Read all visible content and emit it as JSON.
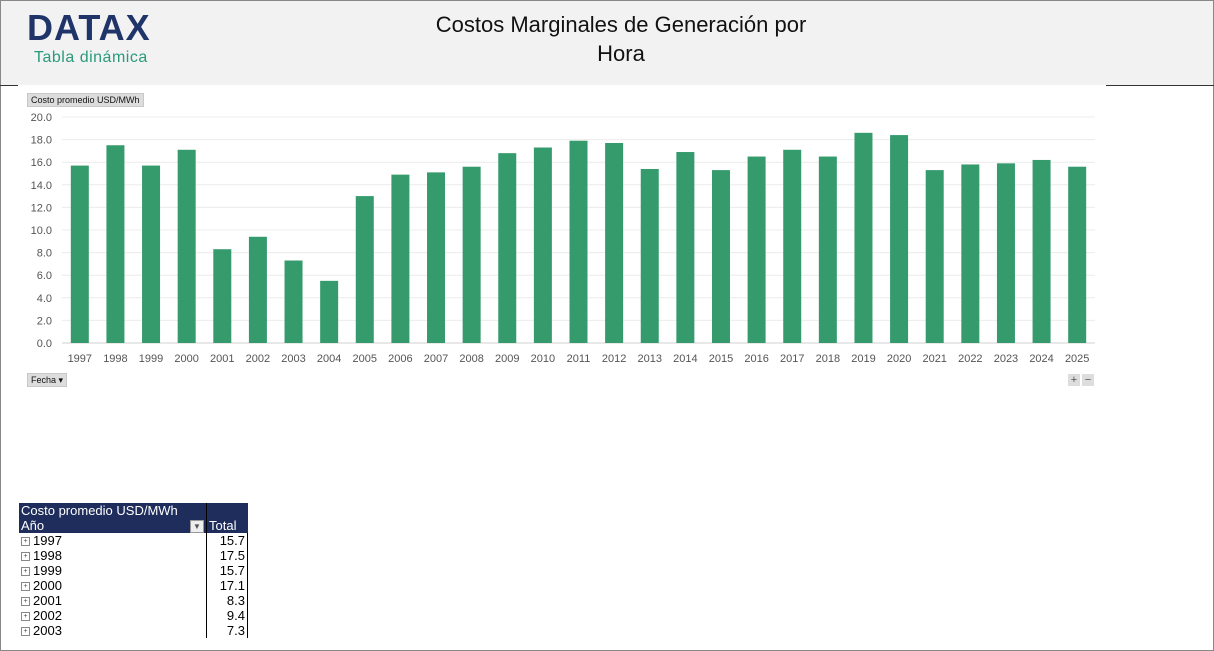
{
  "header": {
    "logo": "DATAX",
    "subtitle": "Tabla dinámica",
    "title_line1": "Costos Marginales de Generación por",
    "title_line2": "Hora"
  },
  "chart_controls": {
    "value_field": "Costo promedio USD/MWh",
    "axis_field": "Fecha ▾",
    "zoom_in": "+",
    "zoom_out": "−"
  },
  "chart_data": {
    "type": "bar",
    "categories": [
      "1997",
      "1998",
      "1999",
      "2000",
      "2001",
      "2002",
      "2003",
      "2004",
      "2005",
      "2006",
      "2007",
      "2008",
      "2009",
      "2010",
      "2011",
      "2012",
      "2013",
      "2014",
      "2015",
      "2016",
      "2017",
      "2018",
      "2019",
      "2020",
      "2021",
      "2022",
      "2023",
      "2024",
      "2025"
    ],
    "values": [
      15.7,
      17.5,
      15.7,
      17.1,
      8.3,
      9.4,
      7.3,
      5.5,
      13.0,
      14.9,
      15.1,
      15.6,
      16.8,
      17.3,
      17.9,
      17.7,
      15.4,
      16.9,
      15.3,
      16.5,
      17.1,
      16.5,
      18.6,
      18.4,
      15.3,
      15.8,
      15.9,
      16.2,
      15.6
    ],
    "ylim": [
      0,
      20
    ],
    "yticks": [
      "0.0",
      "2.0",
      "4.0",
      "6.0",
      "8.0",
      "10.0",
      "12.0",
      "14.0",
      "16.0",
      "18.0",
      "20.0"
    ],
    "grid": true,
    "bar_color": "#359a6c"
  },
  "pivot": {
    "title": "Costo promedio USD/MWh",
    "row_header": "Año",
    "total_header": "Total",
    "rows": [
      {
        "year": "1997",
        "total": "15.7"
      },
      {
        "year": "1998",
        "total": "17.5"
      },
      {
        "year": "1999",
        "total": "15.7"
      },
      {
        "year": "2000",
        "total": "17.1"
      },
      {
        "year": "2001",
        "total": "8.3"
      },
      {
        "year": "2002",
        "total": "9.4"
      },
      {
        "year": "2003",
        "total": "7.3"
      }
    ]
  }
}
